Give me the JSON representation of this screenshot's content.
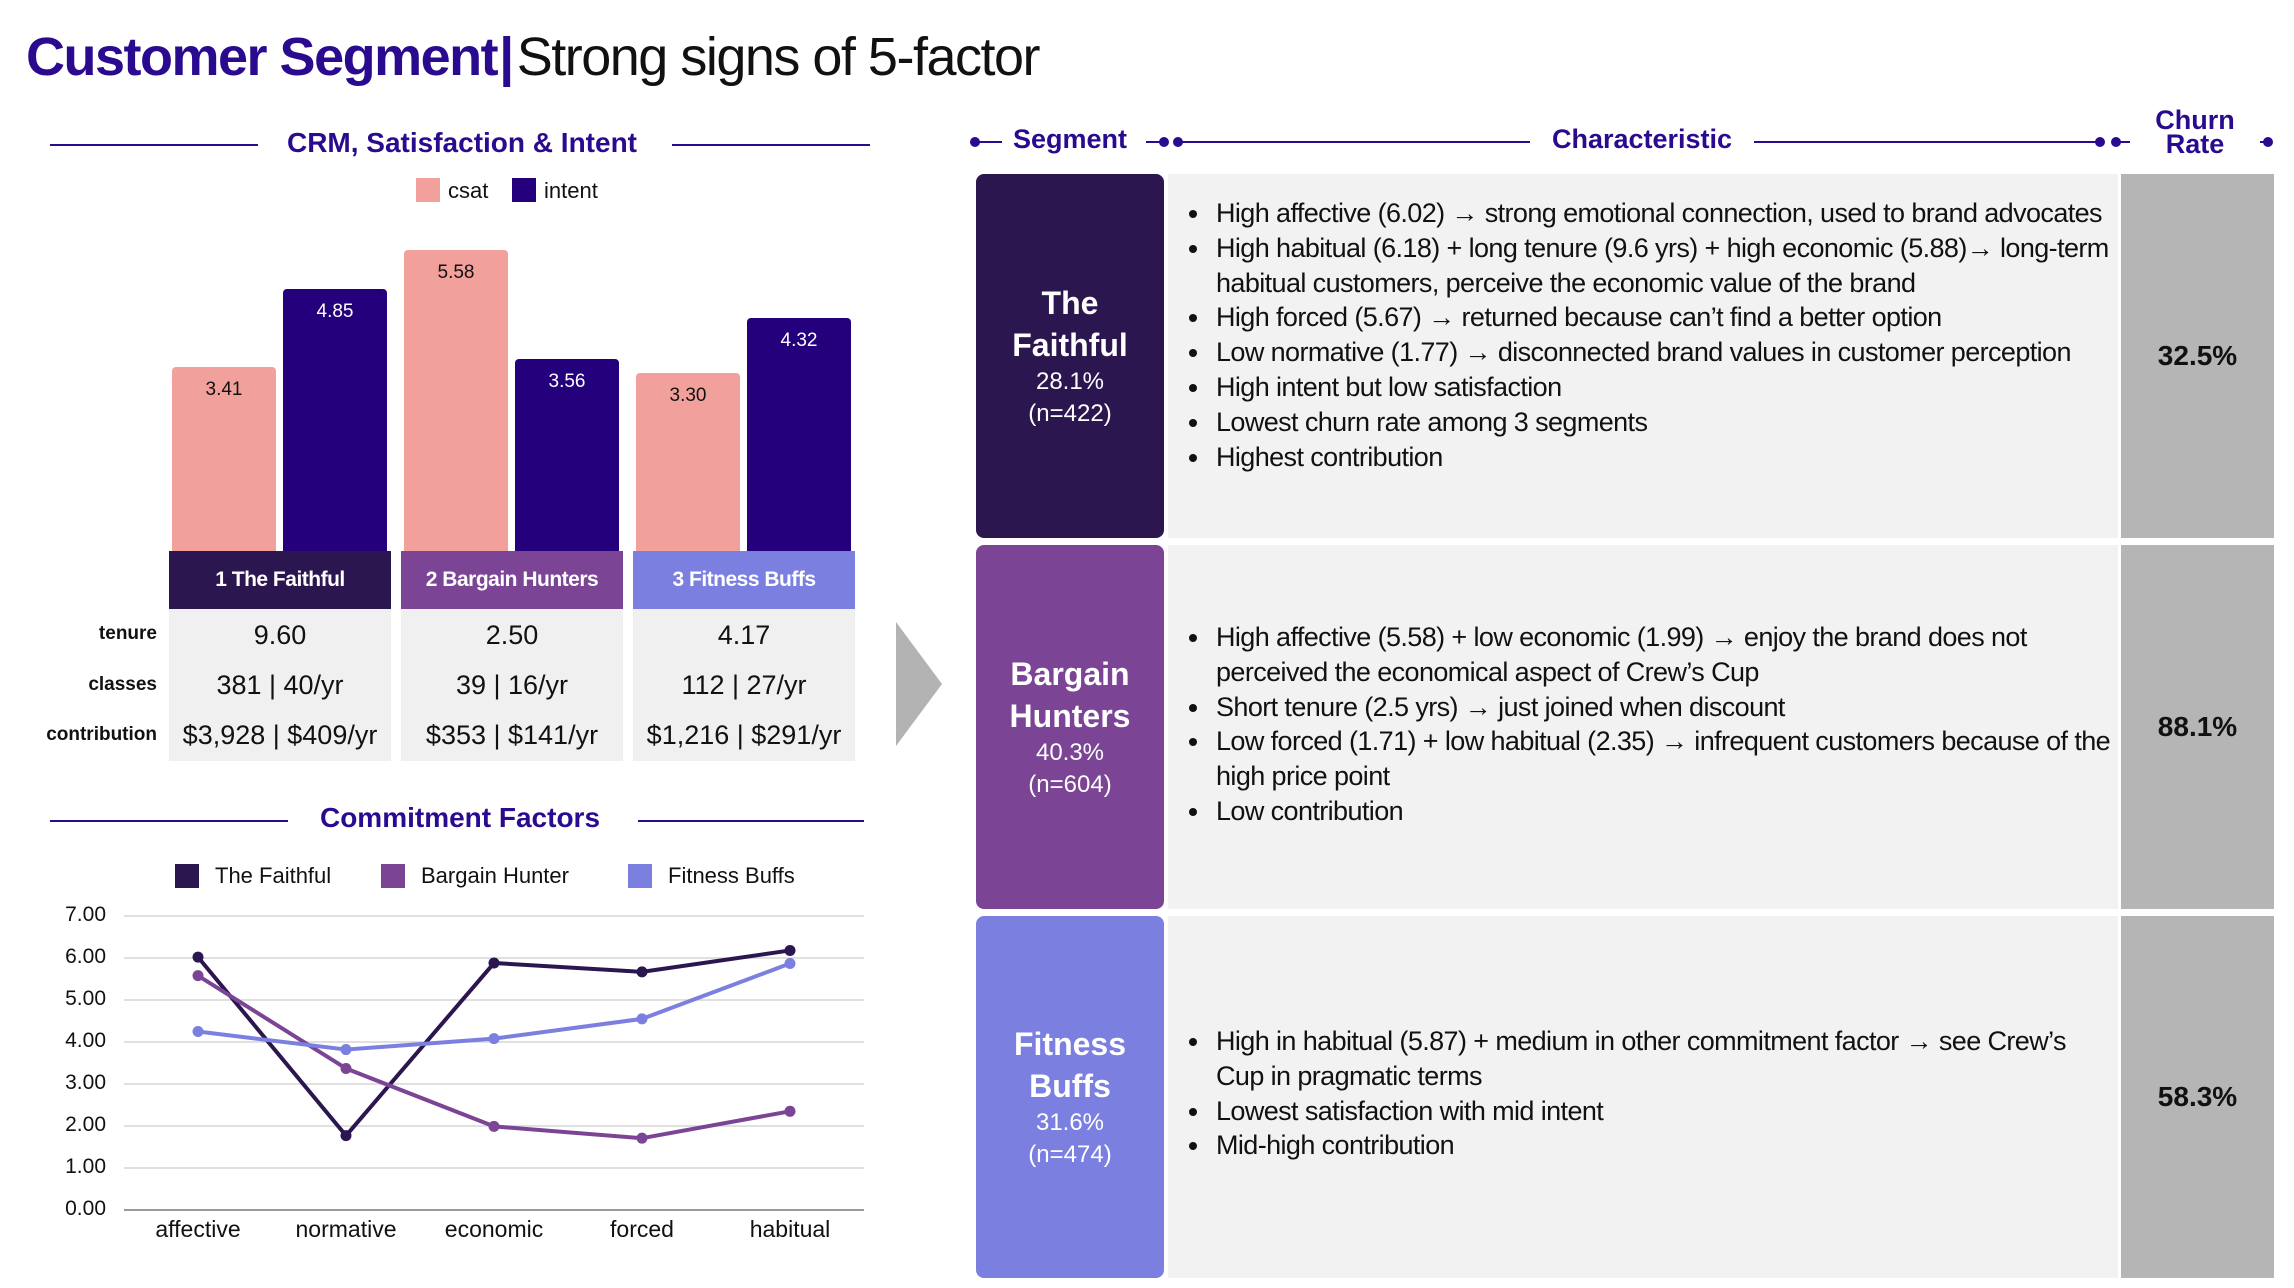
{
  "title": {
    "bold": "Customer Segment",
    "separator": "|",
    "regular": "Strong signs of 5-factor"
  },
  "colors": {
    "faithful": "#2b1650",
    "bargain": "#7b4495",
    "fitness": "#7b7fe0",
    "csat": "#f2a09c",
    "intent": "#24007c",
    "accent": "#2a0a8f",
    "arrow": "#b3b3b3"
  },
  "crm": {
    "title": "CRM, Satisfaction & Intent",
    "legend": [
      "csat",
      "intent"
    ],
    "segments": [
      "1 The Faithful",
      "2 Bargain Hunters",
      "3 Fitness Buffs"
    ],
    "metrics": [
      {
        "label": "tenure",
        "values": [
          "9.60",
          "2.50",
          "4.17"
        ]
      },
      {
        "label": "classes",
        "values": [
          "381 | 40/yr",
          "39 | 16/yr",
          "112 | 27/yr"
        ]
      },
      {
        "label": "contribution",
        "values": [
          "$3,928 | $409/yr",
          "$353 | $141/yr",
          "$1,216 | $291/yr"
        ]
      }
    ]
  },
  "commitment": {
    "title": "Commitment Factors",
    "legend": [
      "The Faithful",
      "Bargain Hunter",
      "Fitness Buffs"
    ],
    "yticks": [
      "7.00",
      "6.00",
      "5.00",
      "4.00",
      "3.00",
      "2.00",
      "1.00",
      "0.00"
    ]
  },
  "table": {
    "headers": {
      "segment": "Segment",
      "characteristic": "Characteristic",
      "churn": "Churn Rate"
    },
    "rows": [
      {
        "name": "The Faithful",
        "pct": "28.1%",
        "n": "(n=422)",
        "churn": "32.5%",
        "bullets": [
          "High affective (6.02) → strong emotional connection, used to brand advocates",
          "High habitual (6.18) + long tenure (9.6 yrs) + high economic (5.88)→ long-term habitual customers, perceive the economic value of the brand",
          "High forced (5.67) → returned because can’t find a better option",
          "Low normative (1.77) → disconnected brand values in customer perception",
          "High intent but low satisfaction",
          "Lowest churn rate among 3 segments",
          "Highest contribution"
        ]
      },
      {
        "name": "Bargain Hunters",
        "pct": "40.3%",
        "n": "(n=604)",
        "churn": "88.1%",
        "bullets": [
          "High affective (5.58) + low economic (1.99) → enjoy the brand does not perceived the economical aspect of Crew’s Cup",
          "Short tenure (2.5 yrs) → just joined when discount",
          "Low forced (1.71) + low habitual (2.35) → infrequent customers because of the high price point",
          "Low contribution"
        ]
      },
      {
        "name": "Fitness Buffs",
        "pct": "31.6%",
        "n": "(n=474)",
        "churn": "58.3%",
        "bullets": [
          "High in habitual (5.87) + medium in other commitment factor → see Crew’s Cup in pragmatic terms",
          "Lowest satisfaction with mid intent",
          "Mid-high contribution"
        ]
      }
    ]
  },
  "chart_data": [
    {
      "type": "bar",
      "title": "CRM, Satisfaction & Intent",
      "categories": [
        "1 The Faithful",
        "2 Bargain Hunters",
        "3 Fitness Buffs"
      ],
      "series": [
        {
          "name": "csat",
          "values": [
            3.41,
            5.58,
            3.3
          ]
        },
        {
          "name": "intent",
          "values": [
            4.85,
            3.56,
            4.32
          ]
        }
      ],
      "ylim": [
        0,
        6
      ],
      "legend": "top"
    },
    {
      "type": "line",
      "title": "Commitment Factors",
      "x": [
        "affective",
        "normative",
        "economic",
        "forced",
        "habitual"
      ],
      "series": [
        {
          "name": "The Faithful",
          "values": [
            6.02,
            1.77,
            5.88,
            5.67,
            6.18
          ]
        },
        {
          "name": "Bargain Hunter",
          "values": [
            5.58,
            3.37,
            1.99,
            1.71,
            2.35
          ]
        },
        {
          "name": "Fitness Buffs",
          "values": [
            4.25,
            3.82,
            4.08,
            4.55,
            5.87
          ]
        }
      ],
      "ylim": [
        0,
        7
      ],
      "grid": true,
      "legend": "top"
    }
  ]
}
